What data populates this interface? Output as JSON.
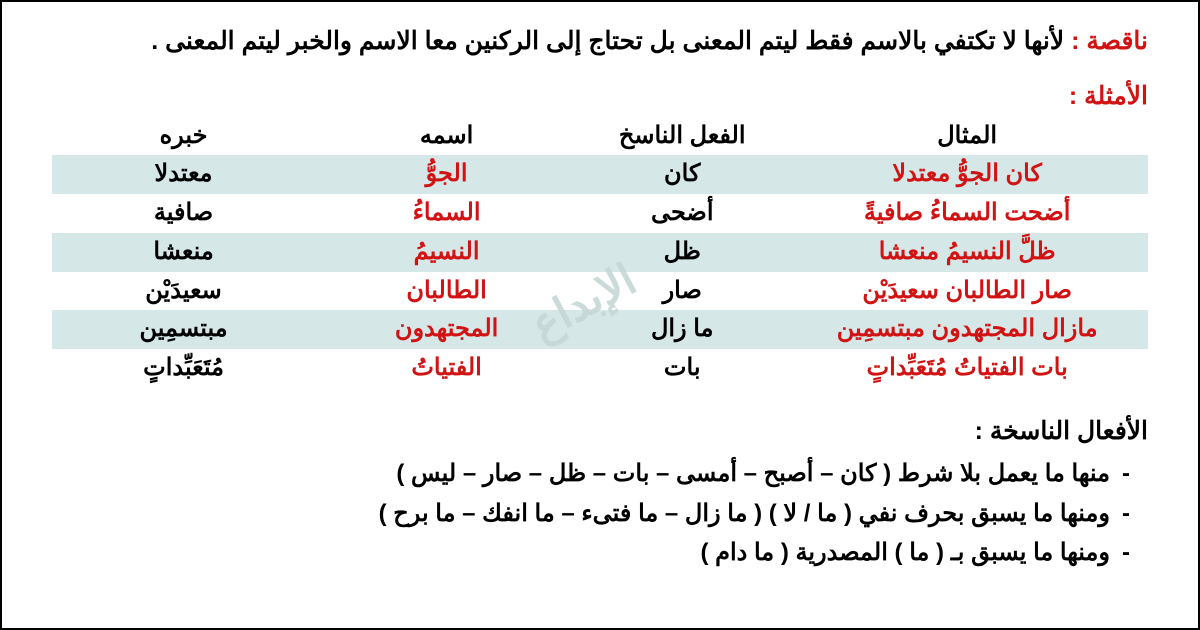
{
  "colors": {
    "accent_red": "#d11313",
    "table_shade": "#d6e7e7",
    "watermark": "#c6d8d6",
    "text": "#000000",
    "background": "#ffffff"
  },
  "intro": {
    "term": "ناقصة :",
    "text": "لأنها لا تكتفي بالاسم فقط ليتم المعنى بل تحتاج إلى الركنين معا الاسم والخبر ليتم المعنى ."
  },
  "examples_title": "الأمثلة :",
  "table": {
    "headers": {
      "example": "المثال",
      "verb": "الفعل الناسخ",
      "noun": "اسمه",
      "khabar": "خبره"
    },
    "rows": [
      {
        "shaded": true,
        "example": "كان الجوُّ معتدلا",
        "verb": "كان",
        "noun": "الجوُّ",
        "khabar": "معتدلا"
      },
      {
        "shaded": false,
        "example": "أضحت السماءُ صافيةً",
        "verb": "أضحى",
        "noun": "السماءُ",
        "khabar": "صافية"
      },
      {
        "shaded": true,
        "example": "ظلَّ النسيمُ منعشا",
        "verb": "ظل",
        "noun": "النسيمُ",
        "khabar": "منعشا"
      },
      {
        "shaded": false,
        "example": "صار الطالبان سعيدَيْن",
        "verb": "صار",
        "noun": "الطالبان",
        "khabar": "سعيدَيْن"
      },
      {
        "shaded": true,
        "example": "مازال المجتهدون مبتسمِين",
        "verb": "ما زال",
        "noun": "المجتهدون",
        "khabar": "مبتسمِين"
      },
      {
        "shaded": false,
        "example": "بات الفتياتُ مُتَعَبِّداتٍ",
        "verb": "بات",
        "noun": "الفتياتُ",
        "khabar": "مُتَعَبِّداتٍ"
      }
    ]
  },
  "watermark_text": "الإبداع",
  "naskh_section": {
    "title": "الأفعال الناسخة :",
    "items": [
      "منها ما يعمل بلا شرط ( كان – أصبح – أمسى – بات – ظل – صار – ليس )",
      "ومنها ما يسبق بحرف نفي ( ما / لا ) ( ما زال – ما فتىء – ما انفك – ما برح )",
      "ومنها ما يسبق بـ ( ما ) المصدرية ( ما دام )"
    ]
  }
}
